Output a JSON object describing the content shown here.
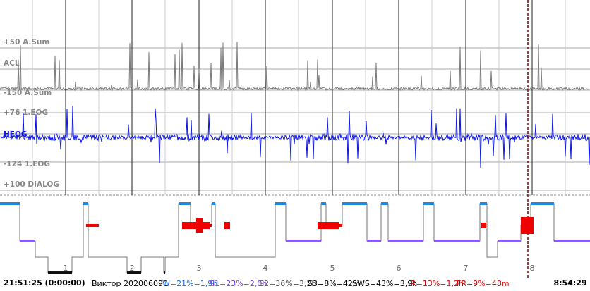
{
  "channels": {
    "asum_top": "+50 A.Sum",
    "acl": "ACL",
    "asum_bottom": "-150 A.Sum",
    "eog_top": "+76 1.EOG",
    "heog": "HEOG",
    "eog_bottom": "-124 1.EOG",
    "dialog": "+100 DIALOG"
  },
  "hours": [
    "1",
    "2",
    "3",
    "4",
    "5",
    "6",
    "7",
    "8"
  ],
  "status": {
    "start": "21:51:25 (0:00:00)",
    "patient": "Виктор 202006090",
    "w": "W=21%=1,9h",
    "s1": "S1=23%=2,0h",
    "s2": "S2=36%=3,2h",
    "s3": "S3=8%=42m",
    "sws": "SWS=43%=3,9h",
    "r": "R=13%=1,2h",
    "fr": "FR=9%=48m",
    "end": "8:54:29"
  }
}
